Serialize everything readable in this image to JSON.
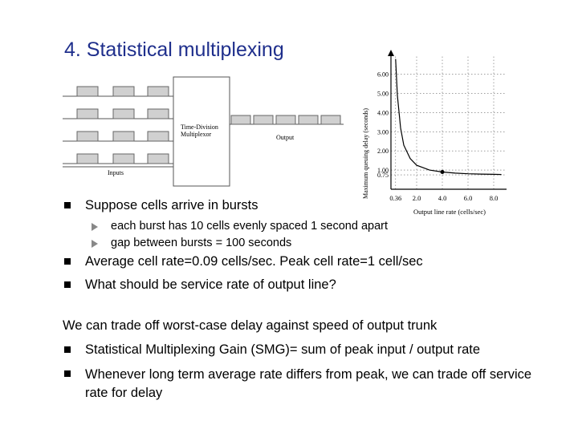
{
  "title": "4. Statistical multiplexing",
  "diagram": {
    "mux_label_1": "Time-Division",
    "mux_label_2": "Multiplexor",
    "inputs_label": "Inputs",
    "output_label": "Output"
  },
  "bullets": [
    {
      "text": "Suppose cells arrive in bursts",
      "sub": [
        "each burst has 10 cells evenly spaced 1 second apart",
        "gap between bursts = 100 seconds"
      ]
    },
    {
      "text": "Average cell rate=0.09 cells/sec. Peak cell rate=1 cell/sec"
    },
    {
      "text": "What should be service rate of output line?"
    }
  ],
  "statement": "We can trade off worst-case delay against speed of output trunk",
  "bullets2": [
    "Statistical Multiplexing Gain (SMG)= sum of peak input / output rate",
    "Whenever long term average rate differs from peak, we can trade off service rate for delay"
  ],
  "chart_data": {
    "type": "line",
    "ylabel": "Maximum queuing delay (seconds)",
    "xlabel": "Output line rate (cells/sec)",
    "x_ticks": [
      "0.36",
      "2.0",
      "4.0",
      "6.0",
      "8.0"
    ],
    "y_ticks": [
      "0.75",
      "1.00",
      "2.00",
      "3.00",
      "4.00",
      "5.00",
      "6.00"
    ],
    "grid": true,
    "series": [
      {
        "x": [
          0.36,
          0.5,
          0.75,
          1.0,
          1.5,
          2.0,
          3.0,
          4.0,
          5.0,
          6.0,
          7.0,
          8.0,
          8.6
        ],
        "y": [
          6.8,
          4.9,
          3.2,
          2.3,
          1.6,
          1.25,
          1.0,
          0.9,
          0.84,
          0.81,
          0.79,
          0.78,
          0.77
        ]
      }
    ],
    "marked_point": {
      "x": 4.0,
      "y": 0.9
    }
  }
}
